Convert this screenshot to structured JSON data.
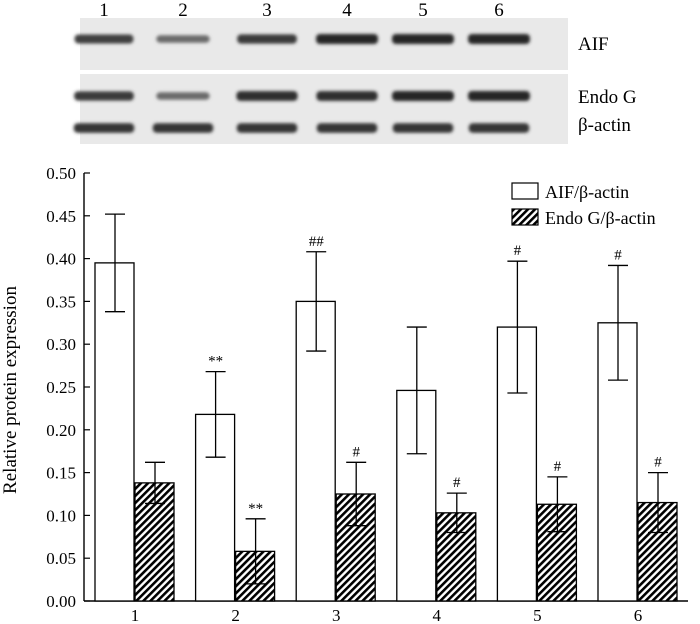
{
  "blot": {
    "lane_labels": [
      "1",
      "2",
      "3",
      "4",
      "5",
      "6"
    ],
    "row_labels": [
      "AIF",
      "Endo G",
      "β-actin"
    ],
    "band_intensity": [
      [
        0.8,
        0.45,
        0.85,
        1.0,
        1.0,
        1.0
      ],
      [
        0.85,
        0.45,
        0.95,
        0.95,
        1.0,
        1.0
      ],
      [
        0.9,
        0.9,
        0.9,
        0.9,
        0.9,
        0.9
      ]
    ]
  },
  "chart_data": {
    "type": "bar",
    "categories": [
      "1",
      "2",
      "3",
      "4",
      "5",
      "6"
    ],
    "ylabel": "Relative protein expression",
    "xlabel": "",
    "ylim": [
      0,
      0.5
    ],
    "yticks": [
      "0.00",
      "0.05",
      "0.10",
      "0.15",
      "0.20",
      "0.25",
      "0.30",
      "0.35",
      "0.40",
      "0.45",
      "0.50"
    ],
    "legend_position": "top-right",
    "grid": false,
    "series": [
      {
        "name": "AIF/β-actin",
        "fill": "open",
        "values": [
          0.395,
          0.218,
          0.35,
          0.246,
          0.32,
          0.325
        ],
        "errors": [
          0.057,
          0.05,
          0.058,
          0.074,
          0.077,
          0.067
        ],
        "annotations": [
          "",
          "**",
          "##",
          "",
          "#",
          "#"
        ]
      },
      {
        "name": "Endo G/β-actin",
        "fill": "hatched",
        "values": [
          0.138,
          0.058,
          0.125,
          0.103,
          0.113,
          0.115
        ],
        "errors": [
          0.024,
          0.038,
          0.037,
          0.023,
          0.032,
          0.035
        ],
        "annotations": [
          "",
          "**",
          "#",
          "#",
          "#",
          "#"
        ]
      }
    ]
  }
}
